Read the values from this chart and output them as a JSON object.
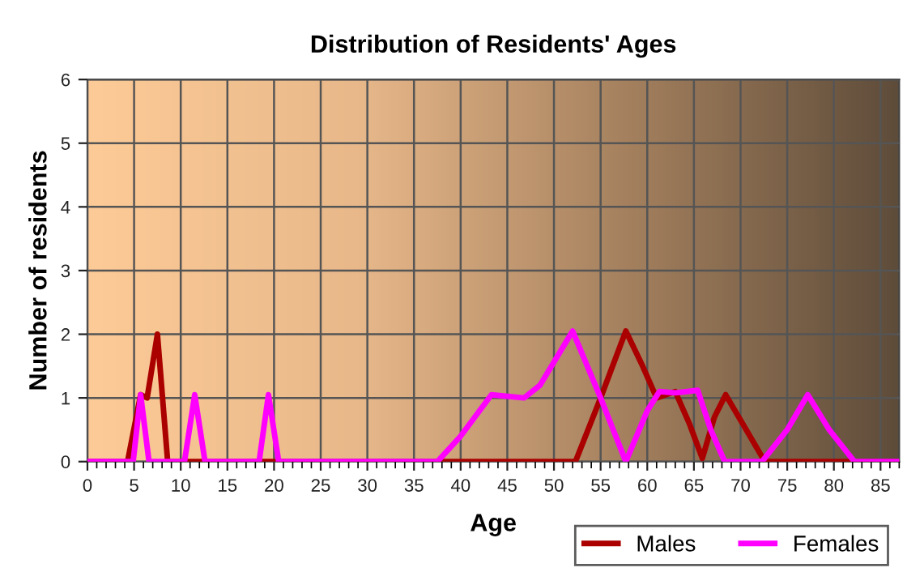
{
  "chart_data": {
    "type": "line",
    "title": "Distribution of Residents' Ages",
    "xlabel": "Age",
    "ylabel": "Number of residents",
    "xlim": [
      0,
      87
    ],
    "xticks": [
      0,
      5,
      10,
      15,
      20,
      25,
      30,
      35,
      40,
      45,
      50,
      55,
      60,
      65,
      70,
      75,
      80,
      85
    ],
    "ylim": [
      0,
      6
    ],
    "yticks": [
      0,
      1,
      2,
      3,
      4,
      5,
      6
    ],
    "grid": true,
    "legend": "bottom right",
    "line_style": "solid",
    "marker": "none",
    "series": [
      {
        "name": "Males",
        "color": "#aa0000",
        "x": [
          0,
          4.3,
          5.7,
          6.4,
          7.5,
          8.6,
          10,
          30,
          47,
          52.3,
          55,
          57.7,
          59.5,
          61,
          63,
          64.5,
          65.9,
          67.2,
          68.4,
          70.2,
          72.6,
          75,
          87
        ],
        "values": [
          0,
          0,
          1.05,
          1.0,
          2.0,
          0,
          0,
          0,
          0,
          0,
          1.0,
          2.05,
          1.5,
          1.0,
          1.1,
          0.6,
          0.05,
          0.7,
          1.05,
          0.6,
          0,
          0,
          0
        ]
      },
      {
        "name": "Females",
        "color": "#ff00ff",
        "x": [
          0,
          4.9,
          5.7,
          6.6,
          10.4,
          11.5,
          12.6,
          18.4,
          19.4,
          20.5,
          37.5,
          40,
          43.3,
          46.8,
          48.5,
          52.0,
          55,
          57.7,
          60,
          61.3,
          63,
          65.4,
          66.8,
          68.3,
          72.3,
          75,
          77.2,
          79.5,
          82.2,
          87
        ],
        "values": [
          0,
          0,
          1.05,
          0,
          0,
          1.05,
          0,
          0,
          1.05,
          0,
          0,
          0.4,
          1.05,
          1.0,
          1.2,
          2.05,
          1.0,
          0,
          0.8,
          1.1,
          1.08,
          1.12,
          0.5,
          0,
          0,
          0.5,
          1.05,
          0.5,
          0,
          0
        ]
      }
    ]
  }
}
